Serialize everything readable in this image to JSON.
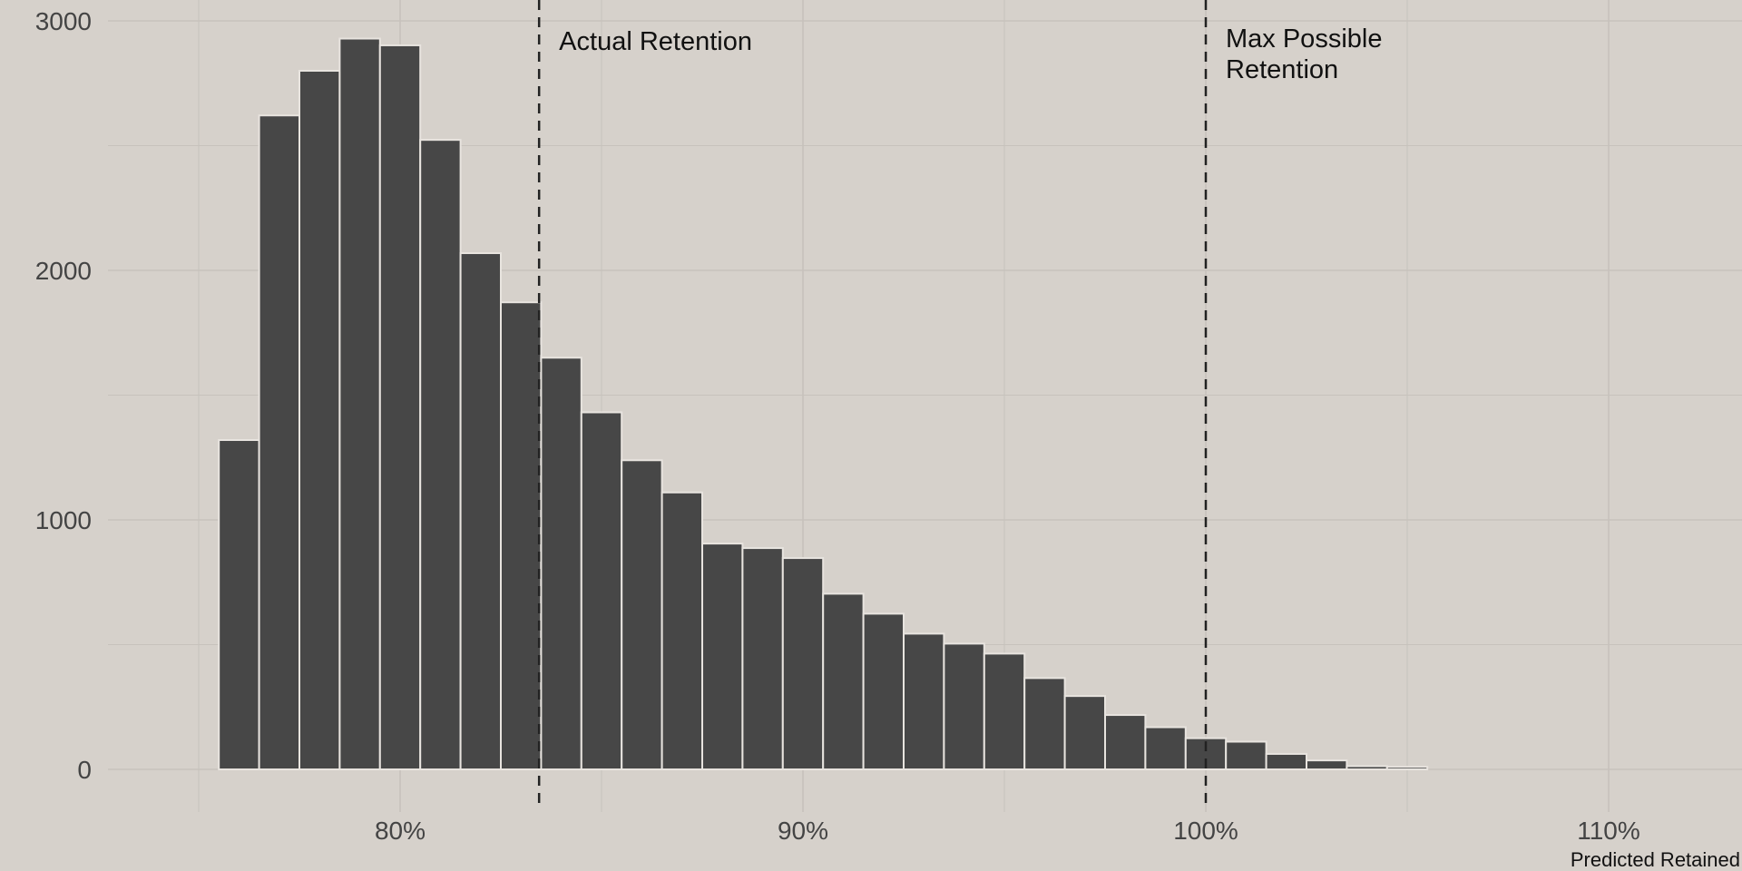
{
  "chart_data": {
    "type": "bar",
    "subtype": "histogram",
    "title": "",
    "xlabel": "Predicted Retained",
    "ylabel": "",
    "bin_width": 1,
    "bin_centers": [
      76,
      77,
      78,
      79,
      80,
      81,
      82,
      83,
      84,
      85,
      86,
      87,
      88,
      89,
      90,
      91,
      92,
      93,
      94,
      95,
      96,
      97,
      98,
      99,
      100,
      101,
      102,
      103,
      104,
      105
    ],
    "values": [
      1320,
      2621,
      2800,
      2929,
      2902,
      2523,
      2069,
      1872,
      1650,
      1431,
      1239,
      1110,
      905,
      887,
      847,
      704,
      624,
      544,
      504,
      464,
      366,
      294,
      218,
      169,
      125,
      111,
      62,
      36,
      13,
      10
    ],
    "xlim": [
      72.75,
      113.3
    ],
    "ylim": [
      -500,
      3084
    ],
    "x_ticks": [
      80,
      90,
      100,
      110
    ],
    "x_tick_labels": [
      "80%",
      "90%",
      "100%",
      "110%"
    ],
    "y_ticks": [
      0,
      1000,
      2000,
      3000
    ],
    "y_tick_labels": [
      "0",
      "1000",
      "2000",
      "3000"
    ],
    "grid": true,
    "reference_lines": [
      {
        "x": 83.45,
        "label_lines": [
          "Actual Retention"
        ]
      },
      {
        "x": 100,
        "label_lines": [
          "Max Possible",
          "Retention"
        ]
      }
    ],
    "colors": {
      "background": "#d6d1cb",
      "bar": "#474747",
      "bar_edge": "#e8e4df",
      "grid": "#c7c2bc",
      "ref_line": "#222222"
    }
  }
}
